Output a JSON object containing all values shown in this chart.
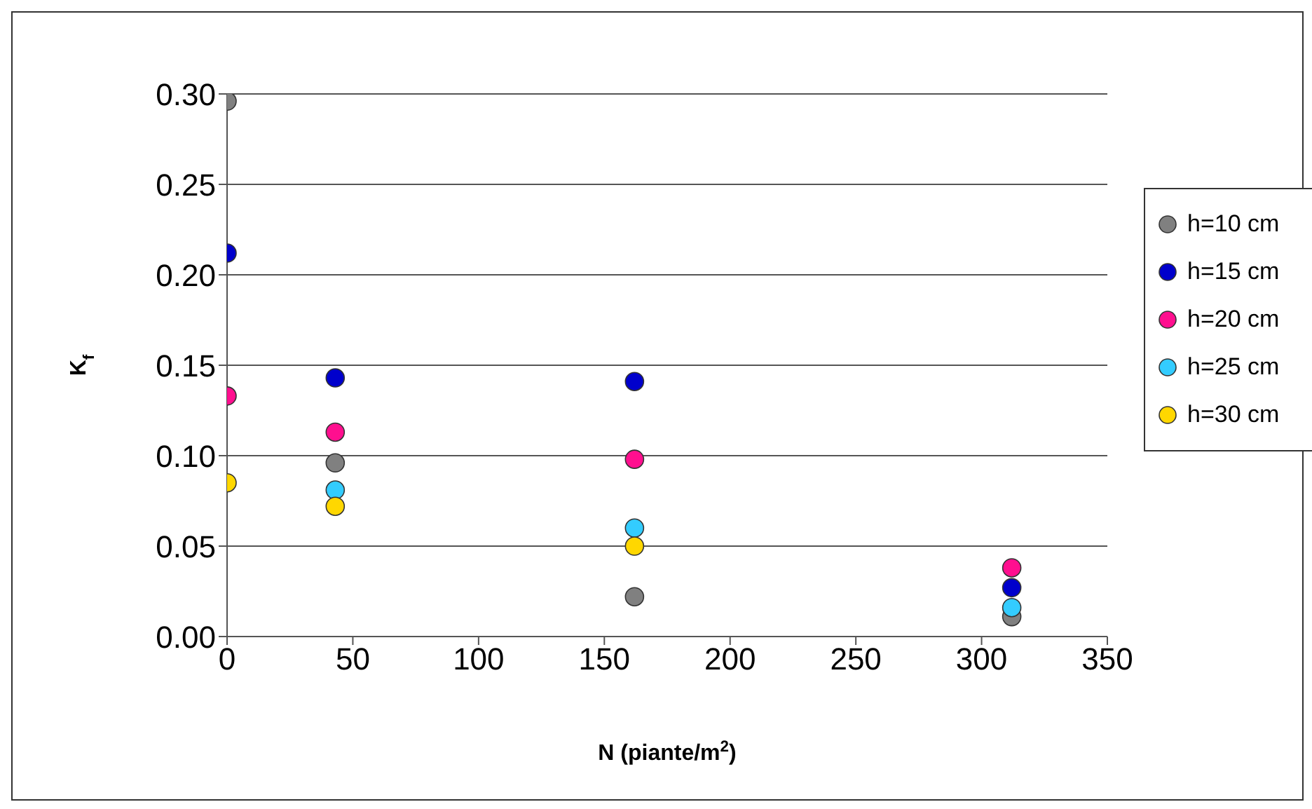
{
  "chart_data": {
    "type": "scatter",
    "xlabel": "N (piante/m$^{2}$)",
    "ylabel": "K$_{f}$",
    "x": [
      0,
      43,
      162,
      312
    ],
    "series": [
      {
        "name": "h=10 cm",
        "color": "#808080",
        "values": [
          0.296,
          0.096,
          0.022,
          0.011
        ]
      },
      {
        "name": "h=15 cm",
        "color": "#0000cc",
        "values": [
          0.212,
          0.143,
          0.141,
          0.027
        ]
      },
      {
        "name": "h=20 cm",
        "color": "#ff0f8f",
        "values": [
          0.133,
          0.113,
          0.098,
          0.038
        ]
      },
      {
        "name": "h=25 cm",
        "color": "#33ccff",
        "values": [
          null,
          0.081,
          0.06,
          0.016
        ]
      },
      {
        "name": "h=30 cm",
        "color": "#ffd700",
        "values": [
          0.085,
          0.072,
          0.05,
          null
        ]
      }
    ],
    "xlim": [
      0,
      350
    ],
    "xticks": [
      0,
      50,
      100,
      150,
      200,
      250,
      300,
      350
    ],
    "ylim": [
      0,
      0.3
    ],
    "yticks": [
      {
        "value": 0,
        "label": "0.00"
      },
      {
        "value": 0.05,
        "label": "0.05"
      },
      {
        "value": 0.1,
        "label": "0.10"
      },
      {
        "value": 0.15,
        "label": "0.15"
      },
      {
        "value": 0.2,
        "label": "0.20"
      },
      {
        "value": 0.25,
        "label": "0.25"
      },
      {
        "value": 0.3,
        "label": "0.30"
      }
    ],
    "grid": "y",
    "legend": "right",
    "marker": "circle"
  }
}
